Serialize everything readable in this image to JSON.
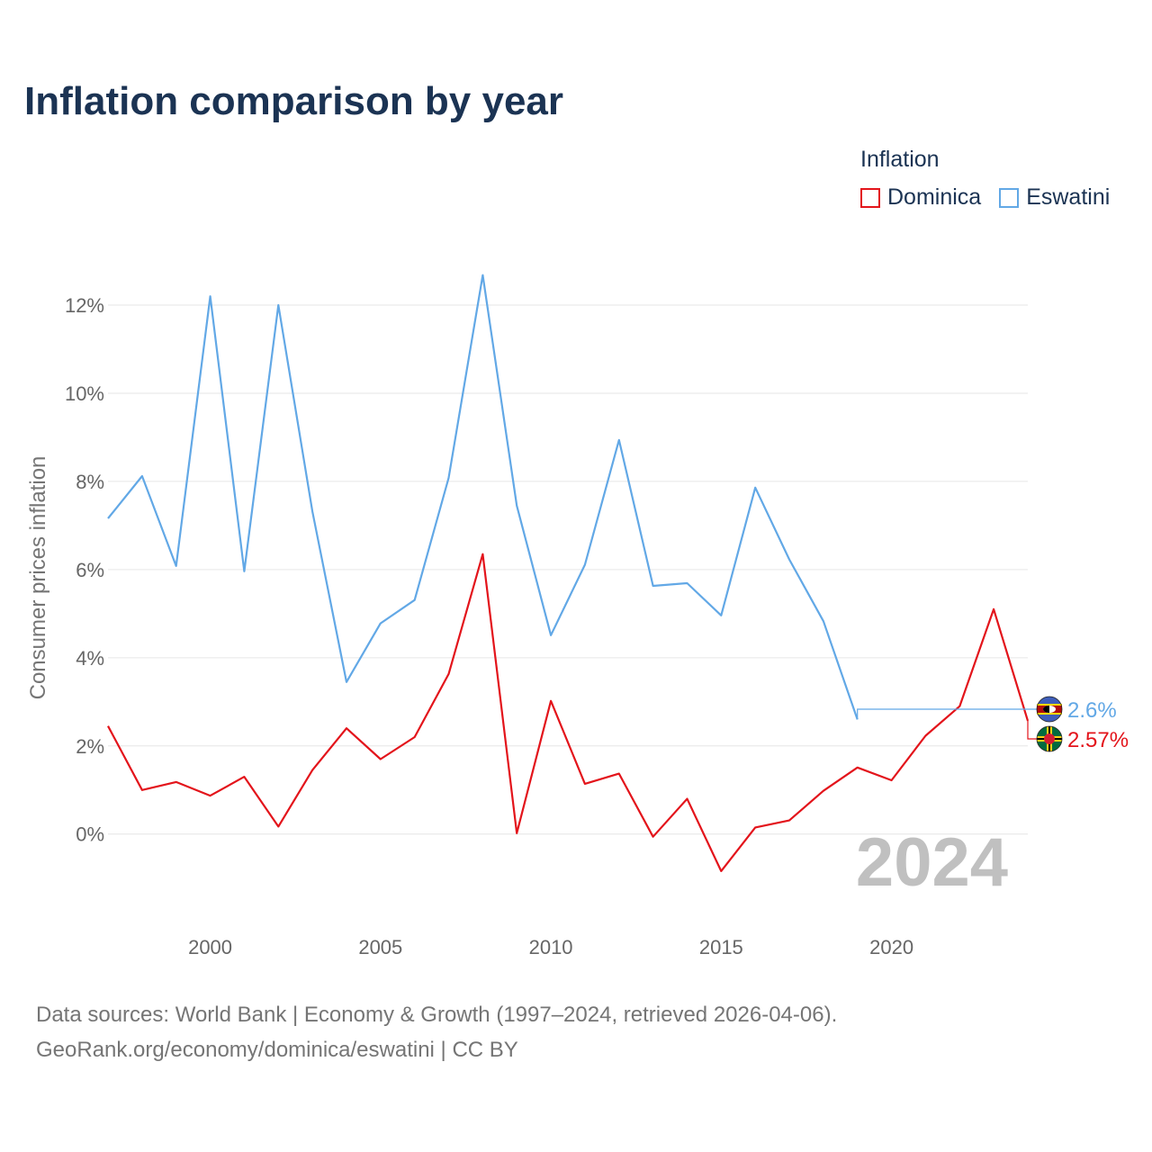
{
  "title": "Inflation comparison by year",
  "legend": {
    "title": "Inflation",
    "items": [
      {
        "label": "Dominica",
        "color": "#e3141b"
      },
      {
        "label": "Eswatini",
        "color": "#62a8e6"
      }
    ]
  },
  "chart_data": {
    "type": "line",
    "title": "Inflation comparison by year",
    "xlabel": "",
    "ylabel": "Consumer prices inflation",
    "xlim": [
      1997,
      2024
    ],
    "ylim": [
      -1.7,
      13.0
    ],
    "x_ticks": [
      2000,
      2005,
      2010,
      2015,
      2020
    ],
    "x_tick_labels": [
      "2000",
      "2005",
      "2010",
      "2015",
      "2020"
    ],
    "y_ticks": [
      0,
      2,
      4,
      6,
      8,
      10,
      12
    ],
    "y_tick_labels": [
      "0%",
      "2%",
      "4%",
      "6%",
      "8%",
      "10%",
      "12%"
    ],
    "grid": true,
    "legend_position": "top-right",
    "year_label": "2024",
    "series": [
      {
        "name": "Dominica",
        "color": "#e3141b",
        "end_label": "2.57%",
        "x": [
          1997,
          1998,
          1999,
          2000,
          2001,
          2002,
          2003,
          2004,
          2005,
          2006,
          2007,
          2008,
          2009,
          2010,
          2011,
          2012,
          2013,
          2014,
          2015,
          2016,
          2017,
          2018,
          2019,
          2020,
          2021,
          2022,
          2023,
          2024
        ],
        "values": [
          2.45,
          1.0,
          1.18,
          0.87,
          1.3,
          0.17,
          1.45,
          2.4,
          1.7,
          2.2,
          3.63,
          6.35,
          0.02,
          3.02,
          1.14,
          1.37,
          -0.06,
          0.8,
          -0.84,
          0.15,
          0.31,
          0.98,
          1.51,
          1.22,
          2.23,
          2.9,
          5.1,
          2.57
        ]
      },
      {
        "name": "Eswatini",
        "color": "#62a8e6",
        "end_label": "2.6%",
        "x": [
          1997,
          1998,
          1999,
          2000,
          2001,
          2002,
          2003,
          2004,
          2005,
          2006,
          2007,
          2008,
          2009,
          2010,
          2011,
          2012,
          2013,
          2014,
          2015,
          2016,
          2017,
          2018,
          2019
        ],
        "values": [
          7.16,
          8.12,
          6.08,
          12.2,
          5.96,
          12.0,
          7.32,
          3.45,
          4.78,
          5.31,
          8.08,
          12.68,
          7.45,
          4.51,
          6.11,
          8.94,
          5.63,
          5.69,
          4.96,
          7.86,
          6.23,
          4.83,
          2.6
        ]
      }
    ]
  },
  "footer": {
    "line1": "Data sources: World Bank | Economy & Growth (1997–2024, retrieved 2026-04-06).",
    "line2": "GeoRank.org/economy/dominica/eswatini | CC BY"
  }
}
